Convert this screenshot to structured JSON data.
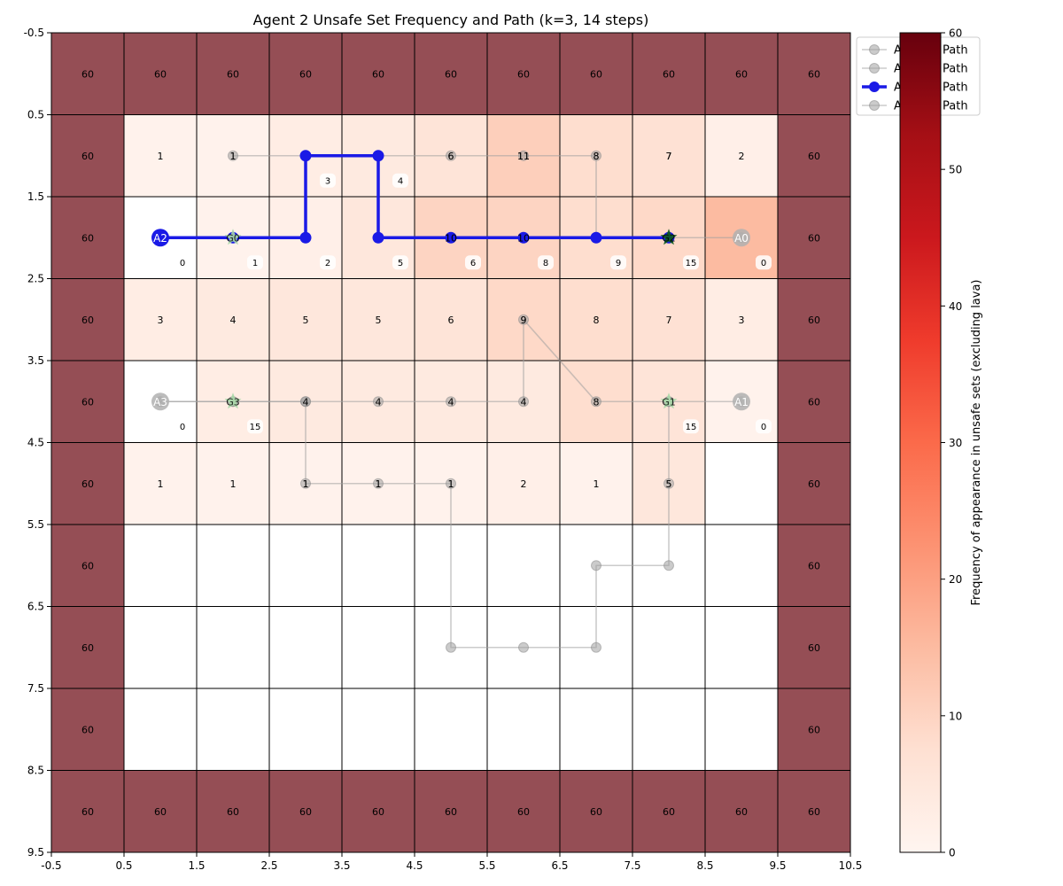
{
  "chart_data": {
    "type": "heatmap",
    "title": "Agent 2 Unsafe Set Frequency and Path (k=3, 14 steps)",
    "x_ticks": [
      "-0.5",
      "0.5",
      "1.5",
      "2.5",
      "3.5",
      "4.5",
      "5.5",
      "6.5",
      "7.5",
      "8.5",
      "9.5",
      "10.5"
    ],
    "y_ticks": [
      "-0.5",
      "0.5",
      "1.5",
      "2.5",
      "3.5",
      "4.5",
      "5.5",
      "6.5",
      "7.5",
      "8.5",
      "9.5"
    ],
    "xlim": [
      -0.5,
      10.5
    ],
    "ylim": [
      9.5,
      -0.5
    ],
    "grid": [
      [
        60,
        60,
        60,
        60,
        60,
        60,
        60,
        60,
        60,
        60,
        60
      ],
      [
        60,
        1,
        1,
        3,
        4,
        6,
        11,
        8,
        7,
        2,
        60
      ],
      [
        60,
        0,
        1,
        2,
        5,
        10,
        10,
        8,
        9,
        15,
        60
      ],
      [
        60,
        3,
        4,
        5,
        5,
        6,
        9,
        8,
        7,
        3,
        60
      ],
      [
        60,
        0,
        3,
        4,
        4,
        4,
        4,
        8,
        6,
        1,
        60
      ],
      [
        60,
        1,
        1,
        1,
        1,
        1,
        2,
        1,
        5,
        0,
        60
      ],
      [
        60,
        0,
        0,
        0,
        0,
        0,
        0,
        0,
        0,
        0,
        60
      ],
      [
        60,
        0,
        0,
        0,
        0,
        0,
        0,
        0,
        0,
        0,
        60
      ],
      [
        60,
        0,
        0,
        0,
        0,
        0,
        0,
        0,
        0,
        0,
        60
      ],
      [
        60,
        60,
        60,
        60,
        60,
        60,
        60,
        60,
        60,
        60,
        60
      ]
    ],
    "cell_labels": [
      [
        "60",
        "60",
        "60",
        "60",
        "60",
        "60",
        "60",
        "60",
        "60",
        "60",
        "60"
      ],
      [
        "60",
        "1",
        "1",
        "3",
        "4",
        "6",
        "11",
        "8",
        "7",
        "2",
        "60"
      ],
      [
        "60",
        "",
        "",
        "",
        "",
        "",
        "",
        "",
        "",
        "",
        "60"
      ],
      [
        "60",
        "3",
        "4",
        "5",
        "5",
        "6",
        "9",
        "8",
        "7",
        "3",
        "60"
      ],
      [
        "60",
        "",
        "",
        "",
        "",
        "",
        "",
        "",
        "",
        "",
        "60"
      ],
      [
        "60",
        "1",
        "1",
        "1",
        "1",
        "1",
        "2",
        "1",
        "5",
        "",
        "60"
      ],
      [
        "60",
        "",
        "",
        "",
        "",
        "",
        "",
        "",
        "",
        "",
        "60"
      ],
      [
        "60",
        "",
        "",
        "",
        "",
        "",
        "",
        "",
        "",
        "",
        "60"
      ],
      [
        "60",
        "",
        "",
        "",
        "",
        "",
        "",
        "",
        "",
        "",
        "60"
      ],
      [
        "60",
        "60",
        "60",
        "60",
        "60",
        "60",
        "60",
        "60",
        "60",
        "60",
        "60"
      ]
    ],
    "step_labels": [
      {
        "x": 1,
        "y": 2,
        "text": "0"
      },
      {
        "x": 2,
        "y": 2,
        "text": "1"
      },
      {
        "x": 3,
        "y": 2,
        "text": "2"
      },
      {
        "x": 3,
        "y": 1,
        "text": "3"
      },
      {
        "x": 4,
        "y": 1,
        "text": "4"
      },
      {
        "x": 4,
        "y": 2,
        "text": "5"
      },
      {
        "x": 5,
        "y": 2,
        "text": "6"
      },
      {
        "x": 6,
        "y": 2,
        "text": "8"
      },
      {
        "x": 7,
        "y": 2,
        "text": "9"
      },
      {
        "x": 8,
        "y": 2,
        "text": "15"
      },
      {
        "x": 9,
        "y": 2,
        "text": "0"
      },
      {
        "x": 1,
        "y": 4,
        "text": "0"
      },
      {
        "x": 2,
        "y": 4,
        "text": "15"
      },
      {
        "x": 8,
        "y": 4,
        "text": "15"
      },
      {
        "x": 9,
        "y": 4,
        "text": "0"
      }
    ],
    "series": [
      {
        "name": "Agent 0 Path",
        "color": "#a0a0a0",
        "highlight": false,
        "x": [
          9,
          8,
          7,
          7,
          6,
          5,
          4,
          3,
          2
        ],
        "y": [
          2,
          2,
          2,
          1,
          1,
          1,
          1,
          1,
          1
        ]
      },
      {
        "name": "Agent 1 Path",
        "color": "#a0a0a0",
        "highlight": false,
        "x": [
          9,
          8,
          8,
          8,
          7,
          7,
          6,
          5,
          5,
          4,
          3,
          3,
          2,
          1
        ],
        "y": [
          4,
          4,
          5,
          6,
          6,
          7,
          7,
          7,
          5,
          5,
          5,
          4,
          4,
          4
        ]
      },
      {
        "name": "Agent 2 Path",
        "color": "#1a1ae6",
        "highlight": true,
        "x": [
          1,
          2,
          3,
          3,
          4,
          4,
          5,
          6,
          7,
          8
        ],
        "y": [
          2,
          2,
          2,
          1,
          1,
          2,
          2,
          2,
          2,
          2
        ]
      },
      {
        "name": "Agent 3 Path",
        "color": "#a0a0a0",
        "highlight": false,
        "x": [
          1,
          2,
          3,
          4,
          5,
          6,
          6,
          7,
          8
        ],
        "y": [
          4,
          4,
          4,
          4,
          4,
          4,
          3,
          4,
          4
        ]
      }
    ],
    "point_labels": [
      {
        "x": 6,
        "y": 1,
        "text": "11"
      },
      {
        "x": 7,
        "y": 1,
        "text": "8"
      },
      {
        "x": 8,
        "y": 1,
        "text": "7"
      },
      {
        "x": 2,
        "y": 1,
        "text": "1"
      },
      {
        "x": 5,
        "y": 1,
        "text": "6"
      },
      {
        "x": 5,
        "y": 2,
        "text": "10"
      },
      {
        "x": 6,
        "y": 2,
        "text": "10"
      },
      {
        "x": 6,
        "y": 3,
        "text": "9"
      },
      {
        "x": 3,
        "y": 4,
        "text": "4"
      },
      {
        "x": 4,
        "y": 4,
        "text": "4"
      },
      {
        "x": 5,
        "y": 4,
        "text": "4"
      },
      {
        "x": 6,
        "y": 4,
        "text": "4"
      },
      {
        "x": 7,
        "y": 4,
        "text": "8"
      },
      {
        "x": 3,
        "y": 5,
        "text": "1"
      },
      {
        "x": 4,
        "y": 5,
        "text": "1"
      },
      {
        "x": 5,
        "y": 5,
        "text": "1"
      },
      {
        "x": 8,
        "y": 5,
        "text": "5"
      }
    ],
    "agents": [
      {
        "label": "A0",
        "x": 9,
        "y": 2,
        "color": "#b0b0b0"
      },
      {
        "label": "A1",
        "x": 9,
        "y": 4,
        "color": "#b0b0b0"
      },
      {
        "label": "A2",
        "x": 1,
        "y": 2,
        "color": "#1a1ae6"
      },
      {
        "label": "A3",
        "x": 1,
        "y": 4,
        "color": "#b0b0b0"
      }
    ],
    "goals": [
      {
        "label": "G0",
        "x": 2,
        "y": 2,
        "color": "#a8d8a8"
      },
      {
        "label": "G1",
        "x": 8,
        "y": 4,
        "color": "#a8d8a8"
      },
      {
        "label": "G2",
        "x": 8,
        "y": 2,
        "color": "#0a5a1a"
      },
      {
        "label": "G3",
        "x": 2,
        "y": 4,
        "color": "#a8d8a8"
      }
    ],
    "legend": [
      "Agent 0 Path",
      "Agent 1 Path",
      "Agent 2 Path",
      "Agent 3 Path"
    ],
    "legend_position": "top-right",
    "colorbar": {
      "label": "Frequency of appearance in unsafe sets (excluding lava)",
      "min": 0,
      "max": 60,
      "ticks": [
        "0",
        "10",
        "20",
        "30",
        "40",
        "50",
        "60"
      ],
      "colormap": "Reds"
    },
    "colors": {
      "lava": "#954e55",
      "grid_line": "#000000",
      "zero_cell": "#ffffff"
    }
  }
}
